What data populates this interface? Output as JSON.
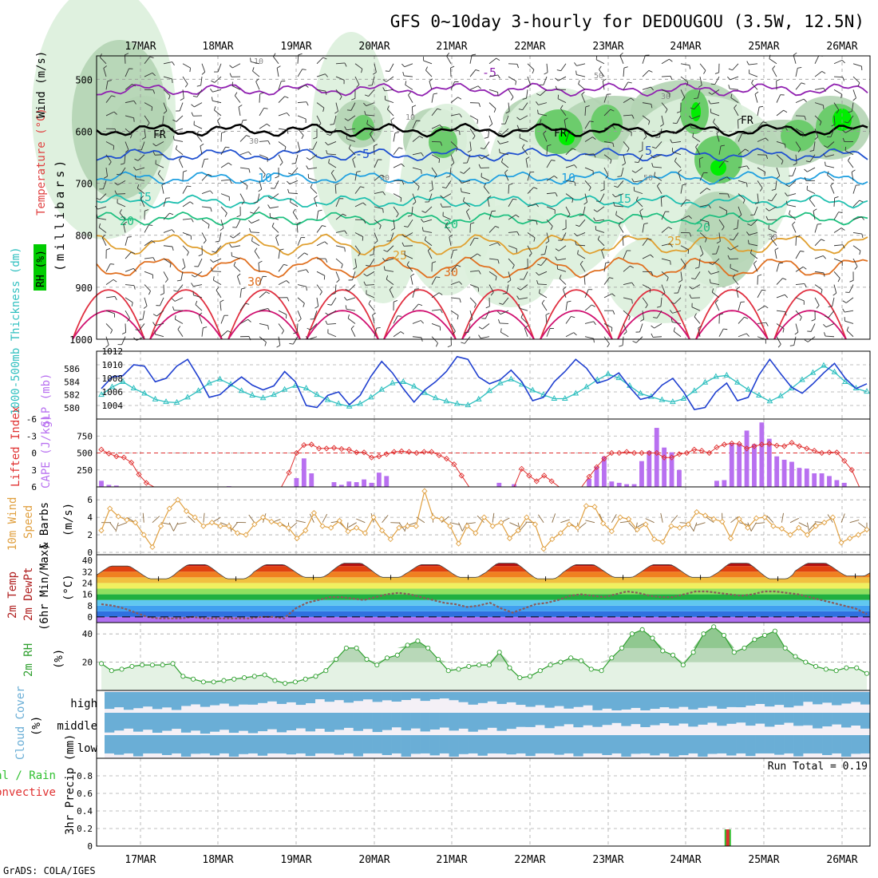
{
  "title": "GFS 0~10day 3-hourly for DEDOUGOU (3.5W, 12.5N)",
  "credit": "GrADS: COLA/IGES",
  "run_total_label": "Run Total = 0.19",
  "dates": [
    "17MAR",
    "18MAR",
    "19MAR",
    "20MAR",
    "21MAR",
    "22MAR",
    "23MAR",
    "24MAR",
    "25MAR",
    "26MAR"
  ],
  "panel_labels": {
    "upper_rh": "RH (%)",
    "upper_temp": "Temperature (°C)",
    "upper_wind": "Wind (m/s)",
    "upper_units": "(millibars)",
    "thickness": "1000-500mb Thickness (dm)",
    "slp": "SLP (mb)",
    "lifted": "Lifted Index",
    "cape": "CAPE (J/kg)",
    "wind10_a": "10m Wind",
    "wind10_b": "Speed",
    "wind10_c": "& Barbs",
    "wind10_units": "(m/s)",
    "temp2_a": "2m Temp",
    "temp2_b": "2m DewPt",
    "temp2_c": "(6hr Min/Max)",
    "temp2_units": "(°C)",
    "rh2": "2m RH",
    "rh2_units": "(%)",
    "cloud": "Cloud Cover",
    "cloud_units": "(%)",
    "cloud_high": "high",
    "cloud_middle": "middle",
    "cloud_low": "low",
    "precip_a": "Total / Rain",
    "precip_b": "Convective",
    "precip": "3hr Precip (mm)"
  },
  "colors": {
    "thickness": "#30c0c0",
    "slp": "#2040d0",
    "cape": "#b870f0",
    "lifted": "#e03030",
    "wind10": "#e0a040",
    "rh2": "#30a030",
    "cloud": "#6aaed6",
    "precip_total": "#30c030",
    "precip_conv": "#e03030",
    "rh_light": "#dcefdc",
    "rh_mid": "#b4d4b4",
    "rh_dark": "#6ccc6c",
    "rh_bright": "#00ee00"
  },
  "chart_data": [
    {
      "type": "contour",
      "name": "upper-air",
      "y_axis": {
        "label": "millibars",
        "ticks": [
          500,
          600,
          700,
          800,
          900,
          1000
        ],
        "range": [
          455,
          1000
        ],
        "reversed": true
      },
      "isotherm_labels_c": [
        -5,
        -5,
        5,
        5,
        10,
        10,
        15,
        15,
        20,
        20,
        25,
        25,
        30,
        30
      ],
      "freezing_level_label": "FR",
      "approx_isotherm_levels_mb": {
        "-5": 520,
        "0": 598,
        "5": 645,
        "10": 690,
        "15": 735,
        "20": 768,
        "25": 818,
        "30": 862
      },
      "rh_label_values": [
        10,
        30,
        50
      ]
    },
    {
      "type": "line",
      "name": "thickness-slp",
      "thickness_axis": {
        "ticks": [
          580,
          582,
          584,
          586
        ],
        "range": [
          579,
          588
        ]
      },
      "slp_axis": {
        "ticks": [
          1004,
          1006,
          1008,
          1010,
          1012
        ],
        "range": [
          1002,
          1012
        ]
      },
      "thickness_dm": [
        582.0,
        583.2,
        584.0,
        583.0,
        582.2,
        581.3,
        580.9,
        580.8,
        581.6,
        582.6,
        583.8,
        584.4,
        583.6,
        582.6,
        581.9,
        581.5,
        582.0,
        582.8,
        583.4,
        583.0,
        582.0,
        581.2,
        580.6,
        580.2,
        580.6,
        581.6,
        582.8,
        583.8,
        584.0,
        583.3,
        582.3,
        581.5,
        581.0,
        580.6,
        580.4,
        581.3,
        582.6,
        583.8,
        584.4,
        583.6,
        582.7,
        582.0,
        581.4,
        581.4,
        582.2,
        583.2,
        584.3,
        585.2,
        584.6,
        583.4,
        582.2,
        581.7,
        581.2,
        580.9,
        581.4,
        582.6,
        583.9,
        584.8,
        585.0,
        583.9,
        582.8,
        581.9,
        581.0,
        581.8,
        583.0,
        584.3,
        585.4,
        586.5,
        585.5,
        584.0,
        583.0,
        582.5
      ],
      "slp_mb": [
        1006.5,
        1008.2,
        1008.4,
        1010.0,
        1009.8,
        1007.5,
        1008.0,
        1009.8,
        1010.8,
        1008.2,
        1005.2,
        1005.6,
        1007.0,
        1008.2,
        1007.0,
        1006.3,
        1006.9,
        1009.0,
        1007.5,
        1004.0,
        1003.7,
        1005.5,
        1006.0,
        1004.1,
        1005.5,
        1008.3,
        1010.5,
        1008.8,
        1006.5,
        1004.5,
        1006.3,
        1007.5,
        1009.0,
        1011.2,
        1010.8,
        1008.2,
        1007.2,
        1007.8,
        1009.2,
        1007.5,
        1004.7,
        1005.2,
        1007.5,
        1009.0,
        1010.8,
        1009.5,
        1007.3,
        1007.8,
        1008.8,
        1006.7,
        1004.9,
        1005.3,
        1007.0,
        1008.0,
        1006.0,
        1003.4,
        1003.7,
        1006.0,
        1007.3,
        1004.7,
        1005.2,
        1008.5,
        1010.8,
        1008.7,
        1006.7,
        1005.8,
        1007.2,
        1008.8,
        1010.2,
        1008.0,
        1006.5,
        1007.2
      ]
    },
    {
      "type": "bar",
      "name": "cape-lifted-index",
      "cape_axis": {
        "ticks": [
          250,
          500,
          750
        ],
        "range": [
          0,
          1000
        ]
      },
      "lifted_axis": {
        "ticks": [
          -6,
          -3,
          0,
          3,
          6
        ],
        "range": [
          -6,
          6
        ],
        "reversed": true
      },
      "cape_jkg": [
        90,
        30,
        20,
        0,
        0,
        0,
        0,
        0,
        0,
        0,
        0,
        0,
        0,
        0,
        0,
        0,
        0,
        10,
        0,
        0,
        0,
        0,
        0,
        0,
        0,
        0,
        130,
        420,
        200,
        0,
        0,
        70,
        30,
        80,
        70,
        110,
        60,
        210,
        160,
        0,
        0,
        0,
        0,
        0,
        0,
        0,
        0,
        0,
        0,
        0,
        0,
        0,
        0,
        60,
        0,
        40,
        0,
        0,
        0,
        0,
        0,
        0,
        0,
        0,
        0,
        120,
        300,
        450,
        80,
        60,
        40,
        40,
        380,
        530,
        870,
        580,
        510,
        250,
        0,
        0,
        0,
        0,
        90,
        100,
        650,
        640,
        830,
        630,
        950,
        710,
        450,
        400,
        370,
        280,
        270,
        200,
        200,
        160,
        100,
        60,
        0,
        0,
        0
      ],
      "lifted_index": [
        -0.6,
        0.1,
        0.6,
        0.8,
        1.7,
        3.8,
        5.3,
        6,
        6,
        6,
        6,
        6,
        6,
        6,
        6,
        6,
        6,
        6,
        6,
        6,
        6,
        6,
        6,
        6,
        6,
        3.5,
        0,
        -1.4,
        -1.5,
        -0.8,
        -0.8,
        -0.9,
        -0.7,
        -0.6,
        -0.1,
        -0.1,
        0.8,
        0.6,
        0.2,
        -0.2,
        -0.3,
        -0.2,
        0,
        -0.2,
        -0.2,
        0.4,
        1,
        2,
        4,
        6,
        6,
        6,
        6,
        6,
        6,
        6,
        2.8,
        4,
        5,
        4,
        5,
        6,
        6,
        6,
        6,
        4.2,
        2.5,
        1,
        0,
        0,
        -0.2,
        0,
        0,
        0,
        0,
        0.8,
        0.8,
        0.2,
        0,
        -0.6,
        -0.4,
        0,
        -1,
        -1.5,
        -1.7,
        -1.6,
        -0.8,
        -1.2,
        -1.5,
        -1.6,
        -1.3,
        -1.2,
        -1.8,
        -1.2,
        -0.8,
        -0.4,
        0,
        -0.1,
        -0.1,
        1.4,
        3,
        6,
        6
      ]
    },
    {
      "type": "line",
      "name": "10m-wind",
      "y_axis": {
        "ticks": [
          0,
          2,
          4,
          6
        ],
        "range": [
          0,
          7.2
        ],
        "label": "m/s"
      },
      "speed_ms": [
        2.5,
        5.0,
        4.1,
        3.7,
        3.4,
        2.0,
        0.6,
        3.0,
        5.0,
        6.0,
        4.7,
        4.0,
        3.0,
        3.4,
        3.0,
        3.0,
        2.2,
        2.0,
        3.2,
        4.0,
        3.5,
        3.2,
        2.8,
        1.6,
        2.5,
        4.5,
        3.0,
        2.8,
        3.6,
        2.4,
        2.8,
        2.2,
        4.0,
        2.5,
        1.5,
        2.8,
        3.0,
        3.0,
        7.0,
        4.0,
        3.8,
        3.0,
        1.0,
        3.0,
        2.2,
        4.0,
        3.0,
        3.4,
        1.6,
        2.5,
        4.0,
        3.2,
        0.4,
        1.5,
        2.2,
        3.2,
        2.8,
        5.3,
        5.2,
        3.3,
        2.4,
        4.0,
        3.8,
        2.6,
        3.2,
        1.5,
        1.2,
        3.0,
        2.8,
        3.2,
        4.6,
        4.2,
        3.8,
        3.5,
        1.6,
        3.8,
        2.8,
        3.9,
        4.0,
        3.0,
        2.7,
        2.0,
        2.8,
        2.0,
        3.0,
        3.4,
        4.0,
        1.1,
        1.6,
        2.0,
        2.6
      ]
    },
    {
      "type": "line",
      "name": "2m-temperature",
      "y_axis": {
        "ticks": [
          0,
          8,
          16,
          24,
          32,
          40
        ],
        "range": [
          -4,
          44
        ],
        "label": "°C"
      },
      "temp_c_max": [
        36,
        37,
        37,
        38,
        37,
        38,
        37,
        37,
        38,
        38,
        37
      ],
      "temp_c_min": [
        27,
        27,
        28,
        28,
        28,
        27,
        28,
        28,
        27,
        29,
        30
      ],
      "dewpoint_c": [
        9,
        8,
        6,
        3,
        0,
        -1,
        -1,
        -1,
        0,
        -1,
        -1,
        -1,
        -1,
        -1,
        0,
        0,
        -1,
        6,
        10,
        12,
        14,
        14,
        13,
        12,
        14,
        16,
        17,
        16,
        14,
        12,
        10,
        9,
        7,
        8,
        10,
        6,
        3,
        6,
        9,
        10,
        12,
        15,
        16,
        15,
        14,
        16,
        18,
        17,
        15,
        14,
        14,
        16,
        18,
        18,
        17,
        16,
        15,
        16,
        18,
        18,
        17,
        16,
        14,
        12,
        10,
        8,
        6,
        2
      ],
      "temperature_color_bands_c": [
        -4,
        0,
        4,
        8,
        12,
        16,
        20,
        24,
        28,
        32,
        36,
        40
      ]
    },
    {
      "type": "area",
      "name": "2m-rh",
      "y_axis": {
        "ticks": [
          20,
          40
        ],
        "range": [
          0,
          48
        ],
        "label": "%"
      },
      "rh_pct": [
        19,
        14,
        15,
        17,
        18,
        18,
        18,
        19,
        10,
        8,
        6,
        6,
        7,
        8,
        9,
        10,
        11,
        7,
        5,
        6,
        8,
        10,
        14,
        22,
        30,
        30,
        22,
        18,
        23,
        25,
        32,
        35,
        30,
        22,
        14,
        15,
        17,
        18,
        18,
        27,
        16,
        9,
        10,
        14,
        18,
        20,
        23,
        21,
        15,
        14,
        23,
        30,
        40,
        43,
        37,
        28,
        25,
        18,
        27,
        40,
        45,
        39,
        27,
        30,
        36,
        39,
        42,
        30,
        24,
        20,
        17,
        15,
        14,
        16,
        16,
        12
      ]
    },
    {
      "type": "heatmap",
      "name": "cloud-cover",
      "rows": [
        "high",
        "middle",
        "low"
      ],
      "mean_cover_pct": {
        "high": [
          80,
          60,
          40,
          20,
          10,
          40,
          70,
          90,
          80,
          60,
          40
        ],
        "middle": [
          70,
          75,
          70,
          65,
          60,
          60,
          40,
          30,
          25,
          30,
          40
        ],
        "low": [
          0,
          0,
          0,
          0,
          0,
          0,
          0,
          0,
          5,
          0,
          0
        ]
      }
    },
    {
      "type": "bar",
      "name": "3hr-precip",
      "y_axis": {
        "ticks": [
          0,
          0.2,
          0.4,
          0.6,
          0.8
        ],
        "range": [
          0,
          1.0
        ],
        "label": "mm"
      },
      "events": [
        {
          "date": "24MAR",
          "hour_utc": 18,
          "total_mm": 0.19,
          "convective_mm": 0.19
        }
      ],
      "run_total_mm": 0.19
    }
  ]
}
